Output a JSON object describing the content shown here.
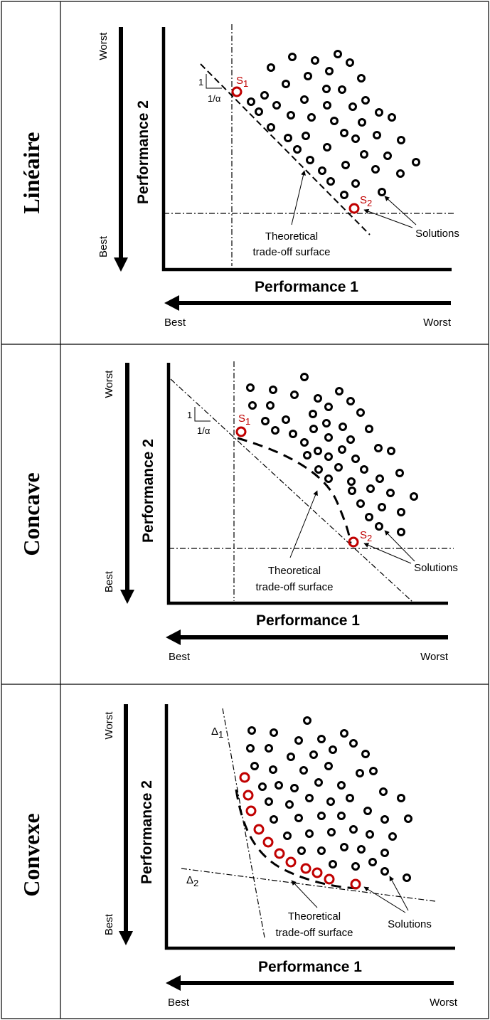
{
  "colors": {
    "ink": "#000000",
    "highlight": "#c00000"
  },
  "panels": [
    {
      "row_label": "Linéaire",
      "y_axis_title": "Performance 2",
      "x_axis_title": "Performance 1",
      "y_top_label": "Worst",
      "y_bottom_label": "Best",
      "x_left_label": "Best",
      "x_right_label": "Worst",
      "surface_label_line1": "Theoretical",
      "surface_label_line2": "trade-off surface",
      "solutions_label": "Solutions",
      "slope_one": "1",
      "slope_alpha": "1/α",
      "s1_label": "S",
      "s1_sub": "1",
      "s2_label": "S",
      "s2_sub": "2"
    },
    {
      "row_label": "Concave",
      "y_axis_title": "Performance 2",
      "x_axis_title": "Performance 1",
      "y_top_label": "Worst",
      "y_bottom_label": "Best",
      "x_left_label": "Best",
      "x_right_label": "Worst",
      "surface_label_line1": "Theoretical",
      "surface_label_line2": "trade-off surface",
      "solutions_label": "Solutions",
      "slope_one": "1",
      "slope_alpha": "1/α",
      "s1_label": "S",
      "s1_sub": "1",
      "s2_label": "S",
      "s2_sub": "2"
    },
    {
      "row_label": "Convexe",
      "y_axis_title": "Performance 2",
      "x_axis_title": "Performance 1",
      "y_top_label": "Worst",
      "y_bottom_label": "Best",
      "x_left_label": "Best",
      "x_right_label": "Worst",
      "surface_label_line1": "Theoretical",
      "surface_label_line2": "trade-off surface",
      "solutions_label": "Solutions",
      "delta1_label": "Δ",
      "delta1_sub": "1",
      "delta2_label": "Δ",
      "delta2_sub": "2"
    }
  ]
}
